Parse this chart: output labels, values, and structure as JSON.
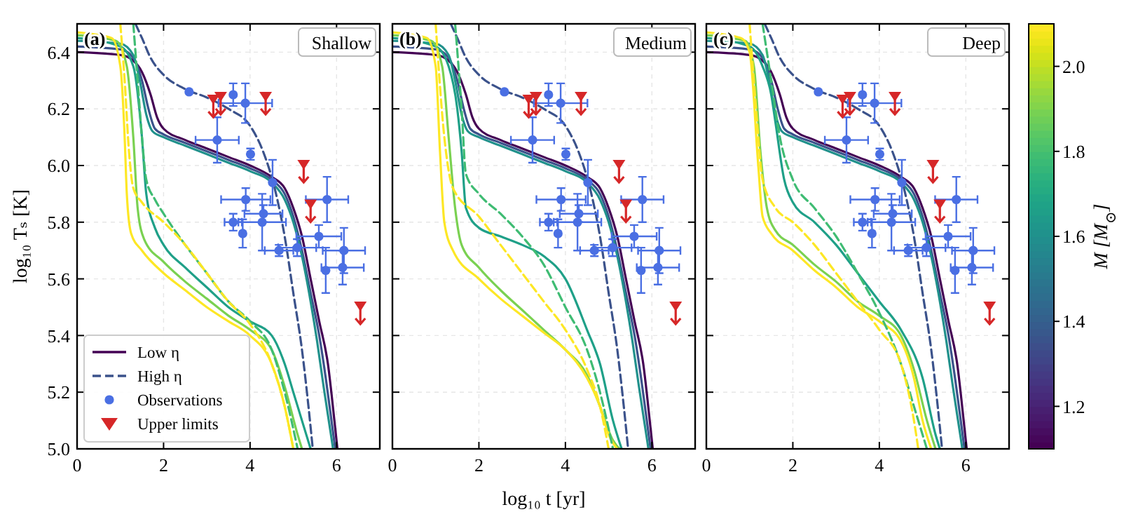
{
  "chart_data": [
    {
      "type": "line",
      "ylabel": "log₁₀ Tₛ [K]",
      "annotations": [
        "(a)",
        "Shallow"
      ],
      "xlim": [
        0,
        7
      ],
      "ylim": [
        5,
        6.5
      ],
      "xticks": [
        0,
        2,
        4,
        6
      ],
      "yticks": [
        {
          "value": 5,
          "label": "5.0"
        },
        5.2,
        5.4,
        5.6,
        5.8,
        {
          "value": 6,
          "label": "6.0"
        },
        6.2,
        6.4
      ],
      "grid": true,
      "legend": "bottom left",
      "series": [
        {
          "name": "Low η",
          "type": "line",
          "line_style": "solid",
          "color": "#440154",
          "x": [
            0,
            1,
            1.3,
            1.5,
            1.7,
            1.85,
            2,
            2.5,
            3,
            3.5,
            4,
            4.5,
            4.8,
            5,
            5.2,
            5.4,
            5.6,
            5.8,
            5.95,
            6.02
          ],
          "values": [
            6.4,
            6.39,
            6.37,
            6.33,
            6.25,
            6.17,
            6.13,
            6.09,
            6.06,
            6.03,
            6.0,
            5.96,
            5.92,
            5.85,
            5.75,
            5.6,
            5.45,
            5.3,
            5.1,
            5.0
          ]
        },
        {
          "type": "line",
          "line_style": "solid",
          "color": "#3b528b",
          "x": [
            0,
            1,
            1.3,
            1.5,
            1.65,
            1.8,
            2,
            2.5,
            3,
            3.5,
            4,
            4.5,
            4.8,
            5,
            5.2,
            5.4,
            5.6,
            5.75,
            5.9,
            5.97
          ],
          "values": [
            6.42,
            6.41,
            6.38,
            6.3,
            6.2,
            6.13,
            6.11,
            6.08,
            6.05,
            6.02,
            5.99,
            5.95,
            5.9,
            5.82,
            5.7,
            5.55,
            5.4,
            5.25,
            5.08,
            5.0
          ]
        },
        {
          "type": "line",
          "line_style": "solid",
          "color": "#21918c",
          "x": [
            0,
            1,
            1.3,
            1.45,
            1.6,
            1.75,
            2,
            2.5,
            3,
            3.5,
            4,
            4.5,
            4.8,
            5,
            5.2,
            5.4,
            5.55,
            5.7,
            5.85,
            5.92
          ],
          "values": [
            6.44,
            6.43,
            6.39,
            6.3,
            6.18,
            6.12,
            6.1,
            6.07,
            6.04,
            6.01,
            5.98,
            5.94,
            5.88,
            5.8,
            5.68,
            5.52,
            5.38,
            5.22,
            5.07,
            5.0
          ]
        },
        {
          "type": "line",
          "line_style": "solid",
          "color": "#1fa088",
          "x": [
            0,
            1,
            1.3,
            1.5,
            1.6,
            1.8,
            2,
            2.5,
            3,
            3.5,
            4,
            4.5,
            4.8,
            5,
            5.2,
            5.4
          ],
          "values": [
            6.45,
            6.42,
            6.35,
            6.1,
            5.9,
            5.78,
            5.72,
            5.64,
            5.57,
            5.5,
            5.45,
            5.4,
            5.3,
            5.2,
            5.1,
            5.0
          ]
        },
        {
          "type": "line",
          "line_style": "solid",
          "color": "#7ad151",
          "x": [
            0,
            0.9,
            1.15,
            1.3,
            1.4,
            1.55,
            2,
            2.5,
            3,
            3.5,
            4,
            4.5,
            4.8,
            5.1,
            5.2
          ],
          "values": [
            6.46,
            6.44,
            6.35,
            6.1,
            5.85,
            5.74,
            5.66,
            5.59,
            5.53,
            5.47,
            5.42,
            5.35,
            5.22,
            5.05,
            5.0
          ]
        },
        {
          "type": "line",
          "line_style": "solid",
          "color": "#fde725",
          "x": [
            0,
            0.8,
            1,
            1.1,
            1.15,
            1.25,
            1.5,
            2,
            2.5,
            3,
            3.5,
            4,
            4.5,
            4.8,
            5
          ],
          "values": [
            6.47,
            6.45,
            6.35,
            6.1,
            5.9,
            5.76,
            5.7,
            5.62,
            5.56,
            5.5,
            5.45,
            5.4,
            5.3,
            5.15,
            5.0
          ]
        },
        {
          "name": "High η",
          "type": "line",
          "line_style": "dashed",
          "color": "#3b528b",
          "x": [
            1.35,
            1.5,
            1.7,
            2,
            2.5,
            3,
            3.5,
            4,
            4.3,
            4.6,
            4.8,
            5,
            5.2,
            5.35,
            5.45
          ],
          "values": [
            6.5,
            6.45,
            6.38,
            6.32,
            6.27,
            6.24,
            6.2,
            6.14,
            6.05,
            5.9,
            5.75,
            5.55,
            5.35,
            5.15,
            5.0
          ]
        },
        {
          "type": "line",
          "line_style": "dashed",
          "color": "#3fbc73",
          "x": [
            1.3,
            1.4,
            1.5,
            1.6,
            1.8,
            2,
            2.5,
            3,
            3.5,
            4,
            4.5,
            4.8,
            5.1
          ],
          "values": [
            6.5,
            6.3,
            6.1,
            5.95,
            5.88,
            5.83,
            5.72,
            5.62,
            5.52,
            5.45,
            5.35,
            5.2,
            5.0
          ]
        },
        {
          "type": "line",
          "line_style": "dashed",
          "color": "#fde725",
          "x": [
            1,
            1.1,
            1.2,
            1.3,
            1.5,
            2,
            2.5,
            3,
            3.5,
            4,
            4.5,
            4.8,
            5
          ],
          "values": [
            6.5,
            6.3,
            6.05,
            5.92,
            5.87,
            5.8,
            5.72,
            5.62,
            5.52,
            5.44,
            5.3,
            5.15,
            5.0
          ]
        },
        {
          "name": "Observations",
          "type": "scatter",
          "marker": "circle",
          "color": "#4a6fe3",
          "x": [
            2.59,
            3.61,
            3.89,
            3.24,
            4.01,
            4.52,
            3.9,
            4.31,
            3.61,
            3.83,
            4.28,
            4.67,
            5.09,
            5.59,
            5.78,
            6.17,
            5.75,
            6.14
          ],
          "values": [
            6.26,
            6.25,
            6.22,
            6.09,
            6.04,
            5.94,
            5.88,
            5.83,
            5.8,
            5.76,
            5.8,
            5.7,
            5.71,
            5.75,
            5.88,
            5.7,
            5.63,
            5.64
          ],
          "errors": [
            null,
            0.04,
            0.07,
            0.08,
            0.02,
            0.08,
            0.04,
            0.03,
            0.03,
            0.05,
            0.1,
            0.02,
            0.03,
            0.04,
            0.08,
            0.08,
            0.08,
            0.06
          ],
          "xerrors": [
            null,
            null,
            0.62,
            0.5,
            null,
            null,
            0.57,
            0.44,
            0.2,
            null,
            0.55,
            0.33,
            0.44,
            0.52,
            0.49,
            0.49,
            null,
            0.49
          ]
        },
        {
          "name": "Upper limits",
          "type": "scatter",
          "marker": "triangle",
          "color": "#d62728",
          "x": [
            3.15,
            3.32,
            4.36,
            5.24,
            5.4,
            6.55
          ],
          "values": [
            6.23,
            6.24,
            6.24,
            6.0,
            5.86,
            5.5
          ]
        }
      ]
    },
    {
      "type": "line",
      "xlabel": "log₁₀ t [yr]",
      "annotations": [
        "(b)",
        "Medium"
      ],
      "xlim": [
        0,
        7
      ],
      "ylim": [
        5,
        6.5
      ],
      "xticks": [
        0,
        2,
        4,
        6
      ],
      "yticks": [
        5,
        5.2,
        5.4,
        5.6,
        5.8,
        6,
        6.2,
        6.4
      ],
      "tick_labels": "x",
      "grid": true,
      "series": [
        {
          "type": "line",
          "line_style": "solid",
          "color": "#440154",
          "x": [
            0,
            1,
            1.3,
            1.5,
            1.7,
            1.85,
            2,
            2.5,
            3,
            3.5,
            4,
            4.5,
            4.8,
            5,
            5.2,
            5.4,
            5.6,
            5.8,
            5.95,
            6.02
          ],
          "values": [
            6.4,
            6.39,
            6.37,
            6.33,
            6.25,
            6.17,
            6.13,
            6.09,
            6.06,
            6.03,
            6.0,
            5.96,
            5.92,
            5.85,
            5.75,
            5.6,
            5.45,
            5.3,
            5.1,
            5.0
          ]
        },
        {
          "type": "line",
          "line_style": "solid",
          "color": "#3b528b",
          "x": [
            0,
            1,
            1.3,
            1.5,
            1.65,
            1.8,
            2,
            2.5,
            3,
            3.5,
            4,
            4.5,
            4.8,
            5,
            5.2,
            5.4,
            5.6,
            5.75,
            5.9,
            5.97
          ],
          "values": [
            6.42,
            6.41,
            6.38,
            6.3,
            6.2,
            6.13,
            6.11,
            6.08,
            6.05,
            6.02,
            5.99,
            5.95,
            5.9,
            5.82,
            5.7,
            5.55,
            5.4,
            5.25,
            5.08,
            5.0
          ]
        },
        {
          "type": "line",
          "line_style": "solid",
          "color": "#21918c",
          "x": [
            0,
            1,
            1.3,
            1.45,
            1.6,
            1.75,
            2,
            2.5,
            3,
            3.5,
            4,
            4.5,
            4.8,
            5,
            5.2,
            5.4,
            5.55,
            5.7,
            5.85,
            5.92
          ],
          "values": [
            6.44,
            6.43,
            6.39,
            6.3,
            6.18,
            6.12,
            6.1,
            6.07,
            6.04,
            6.01,
            5.98,
            5.94,
            5.88,
            5.8,
            5.68,
            5.52,
            5.38,
            5.22,
            5.07,
            5.0
          ]
        },
        {
          "type": "line",
          "line_style": "solid",
          "color": "#1fa088",
          "x": [
            0,
            1,
            1.3,
            1.5,
            1.6,
            1.7,
            2,
            2.5,
            3,
            3.5,
            4,
            4.5,
            4.8,
            5.1,
            5.3
          ],
          "values": [
            6.45,
            6.42,
            6.35,
            6.2,
            6.05,
            5.85,
            5.78,
            5.75,
            5.72,
            5.68,
            5.6,
            5.42,
            5.3,
            5.1,
            5.0
          ]
        },
        {
          "type": "line",
          "line_style": "solid",
          "color": "#7ad151",
          "x": [
            0,
            0.9,
            1.15,
            1.3,
            1.45,
            1.6,
            2,
            2.5,
            3,
            3.5,
            4,
            4.5,
            4.8,
            5.1,
            5.25
          ],
          "values": [
            6.46,
            6.44,
            6.35,
            6.1,
            5.85,
            5.72,
            5.64,
            5.56,
            5.49,
            5.42,
            5.35,
            5.26,
            5.15,
            5.03,
            5.0
          ]
        },
        {
          "type": "line",
          "line_style": "solid",
          "color": "#fde725",
          "x": [
            0,
            0.8,
            1,
            1.1,
            1.2,
            1.4,
            2,
            2.5,
            3,
            3.5,
            4,
            4.5,
            4.8,
            5,
            5.2
          ],
          "values": [
            6.47,
            6.45,
            6.35,
            6.05,
            5.8,
            5.7,
            5.6,
            5.53,
            5.47,
            5.41,
            5.35,
            5.25,
            5.15,
            5.05,
            5.0
          ]
        },
        {
          "type": "line",
          "line_style": "dashed",
          "color": "#3b528b",
          "x": [
            1.35,
            1.5,
            1.7,
            2,
            2.5,
            3,
            3.5,
            4,
            4.3,
            4.6,
            4.8,
            5,
            5.2,
            5.35,
            5.45
          ],
          "values": [
            6.5,
            6.45,
            6.38,
            6.32,
            6.27,
            6.24,
            6.2,
            6.14,
            6.05,
            5.9,
            5.75,
            5.55,
            5.35,
            5.15,
            5.0
          ]
        },
        {
          "type": "line",
          "line_style": "dashed",
          "color": "#3fbc73",
          "x": [
            1.45,
            1.6,
            1.7,
            2,
            2.5,
            3,
            3.5,
            4,
            4.5,
            4.8,
            5.1
          ],
          "values": [
            6.5,
            6.2,
            5.97,
            5.9,
            5.83,
            5.75,
            5.65,
            5.5,
            5.35,
            5.2,
            5.0
          ]
        },
        {
          "type": "line",
          "line_style": "dashed",
          "color": "#fde725",
          "x": [
            1,
            1.2,
            1.4,
            2,
            2.5,
            3,
            3.5,
            4,
            4.5,
            4.8,
            5
          ],
          "values": [
            6.5,
            6.1,
            5.92,
            5.82,
            5.72,
            5.62,
            5.52,
            5.42,
            5.28,
            5.15,
            5.0
          ]
        },
        {
          "type": "scatter",
          "marker": "circle",
          "color": "#4a6fe3",
          "x": [
            2.59,
            3.61,
            3.89,
            3.24,
            4.01,
            4.52,
            3.9,
            4.31,
            3.61,
            3.83,
            4.28,
            4.67,
            5.09,
            5.59,
            5.78,
            6.17,
            5.75,
            6.14
          ],
          "values": [
            6.26,
            6.25,
            6.22,
            6.09,
            6.04,
            5.94,
            5.88,
            5.83,
            5.8,
            5.76,
            5.8,
            5.7,
            5.71,
            5.75,
            5.88,
            5.7,
            5.63,
            5.64
          ],
          "errors": [
            null,
            0.04,
            0.07,
            0.08,
            0.02,
            0.08,
            0.04,
            0.03,
            0.03,
            0.05,
            0.1,
            0.02,
            0.03,
            0.04,
            0.08,
            0.08,
            0.08,
            0.06
          ],
          "xerrors": [
            null,
            null,
            0.62,
            0.5,
            null,
            null,
            0.57,
            0.44,
            0.2,
            null,
            0.55,
            0.33,
            0.44,
            0.52,
            0.49,
            0.49,
            null,
            0.49
          ]
        },
        {
          "type": "scatter",
          "marker": "triangle",
          "color": "#d62728",
          "x": [
            3.15,
            3.32,
            4.36,
            5.24,
            5.4,
            6.55
          ],
          "values": [
            6.23,
            6.24,
            6.24,
            6.0,
            5.86,
            5.5
          ]
        }
      ]
    },
    {
      "type": "line",
      "annotations": [
        "(c)",
        "Deep"
      ],
      "clabel": "M [M$_{⊙}$]",
      "clim": [
        1.1,
        2.1
      ],
      "cticks": [
        1.2,
        1.4,
        1.6,
        1.8,
        {
          "value": 2,
          "label": "2.0"
        }
      ],
      "xlim": [
        0,
        7
      ],
      "ylim": [
        5,
        6.5
      ],
      "xticks": [
        0,
        2,
        4,
        6
      ],
      "yticks": [
        5,
        5.2,
        5.4,
        5.6,
        5.8,
        6,
        6.2,
        6.4
      ],
      "tick_labels": "x",
      "grid": true,
      "series": [
        {
          "type": "line",
          "line_style": "solid",
          "color": "#440154",
          "x": [
            0,
            1,
            1.3,
            1.5,
            1.7,
            1.85,
            2,
            2.5,
            3,
            3.5,
            4,
            4.5,
            4.8,
            5,
            5.2,
            5.4,
            5.6,
            5.8,
            5.95,
            6.02
          ],
          "values": [
            6.4,
            6.39,
            6.37,
            6.33,
            6.25,
            6.17,
            6.13,
            6.09,
            6.06,
            6.03,
            6.0,
            5.96,
            5.92,
            5.85,
            5.75,
            5.6,
            5.45,
            5.3,
            5.1,
            5.0
          ]
        },
        {
          "type": "line",
          "line_style": "solid",
          "color": "#3b528b",
          "x": [
            0,
            1,
            1.3,
            1.5,
            1.65,
            1.8,
            2,
            2.5,
            3,
            3.5,
            4,
            4.5,
            4.8,
            5,
            5.2,
            5.4,
            5.6,
            5.75,
            5.9,
            5.97
          ],
          "values": [
            6.42,
            6.41,
            6.38,
            6.3,
            6.2,
            6.13,
            6.11,
            6.08,
            6.05,
            6.02,
            5.99,
            5.95,
            5.9,
            5.82,
            5.7,
            5.55,
            5.4,
            5.25,
            5.08,
            5.0
          ]
        },
        {
          "type": "line",
          "line_style": "solid",
          "color": "#21918c",
          "x": [
            0,
            1,
            1.3,
            1.45,
            1.6,
            1.75,
            2,
            2.5,
            3,
            3.5,
            4,
            4.5,
            4.8,
            5,
            5.2,
            5.4,
            5.55,
            5.7,
            5.85,
            5.92
          ],
          "values": [
            6.44,
            6.43,
            6.39,
            6.3,
            6.18,
            6.12,
            6.1,
            6.07,
            6.04,
            6.01,
            5.98,
            5.94,
            5.88,
            5.8,
            5.68,
            5.52,
            5.38,
            5.22,
            5.07,
            5.0
          ]
        },
        {
          "type": "line",
          "line_style": "solid",
          "color": "#1fa088",
          "x": [
            0,
            1,
            1.3,
            1.5,
            1.6,
            1.8,
            2,
            2.5,
            3,
            3.5,
            4,
            4.5,
            5,
            5.3,
            5.4
          ],
          "values": [
            6.45,
            6.42,
            6.35,
            6.25,
            6.15,
            5.95,
            5.87,
            5.8,
            5.72,
            5.62,
            5.52,
            5.42,
            5.25,
            5.05,
            5.0
          ]
        },
        {
          "type": "line",
          "line_style": "solid",
          "color": "#7ad151",
          "x": [
            0,
            0.9,
            1.1,
            1.25,
            1.4,
            1.6,
            2,
            2.5,
            3,
            3.5,
            4,
            4.5,
            4.8,
            5.1,
            5.3
          ],
          "values": [
            6.46,
            6.44,
            6.35,
            6.05,
            5.85,
            5.77,
            5.72,
            5.65,
            5.59,
            5.52,
            5.47,
            5.4,
            5.28,
            5.1,
            5.0
          ]
        },
        {
          "type": "line",
          "line_style": "solid",
          "color": "#fde725",
          "x": [
            0,
            0.8,
            1,
            1.2,
            1.3,
            1.5,
            2,
            2.5,
            3,
            3.5,
            4,
            4.5,
            4.8,
            5,
            5.2
          ],
          "values": [
            6.47,
            6.45,
            6.4,
            6.0,
            5.82,
            5.76,
            5.7,
            5.63,
            5.57,
            5.5,
            5.45,
            5.38,
            5.25,
            5.1,
            5.0
          ]
        },
        {
          "type": "line",
          "line_style": "dashed",
          "color": "#3b528b",
          "x": [
            1.35,
            1.5,
            1.7,
            2,
            2.5,
            3,
            3.5,
            4,
            4.3,
            4.6,
            4.8,
            5,
            5.2,
            5.35,
            5.45
          ],
          "values": [
            6.5,
            6.45,
            6.38,
            6.32,
            6.27,
            6.24,
            6.2,
            6.14,
            6.05,
            5.9,
            5.75,
            5.55,
            5.35,
            5.15,
            5.0
          ]
        },
        {
          "type": "line",
          "line_style": "dashed",
          "color": "#3fbc73",
          "x": [
            1.3,
            1.5,
            1.7,
            2,
            2.5,
            3,
            3.5,
            4,
            4.5,
            4.8,
            5.1
          ],
          "values": [
            6.5,
            6.3,
            6.1,
            5.95,
            5.85,
            5.75,
            5.62,
            5.48,
            5.3,
            5.15,
            5.0
          ]
        },
        {
          "type": "line",
          "line_style": "dashed",
          "color": "#fde725",
          "x": [
            1,
            1.15,
            1.3,
            1.6,
            2,
            2.5,
            3,
            3.5,
            4,
            4.5,
            4.8,
            4.9
          ],
          "values": [
            6.5,
            6.2,
            5.95,
            5.85,
            5.8,
            5.72,
            5.62,
            5.52,
            5.42,
            5.3,
            5.1,
            5.0
          ]
        },
        {
          "type": "scatter",
          "marker": "circle",
          "color": "#4a6fe3",
          "x": [
            2.59,
            3.61,
            3.89,
            3.24,
            4.01,
            4.52,
            3.9,
            4.31,
            3.61,
            3.83,
            4.28,
            4.67,
            5.09,
            5.59,
            5.78,
            6.17,
            5.75,
            6.14
          ],
          "values": [
            6.26,
            6.25,
            6.22,
            6.09,
            6.04,
            5.94,
            5.88,
            5.83,
            5.8,
            5.76,
            5.8,
            5.7,
            5.71,
            5.75,
            5.88,
            5.7,
            5.63,
            5.64
          ],
          "errors": [
            null,
            0.04,
            0.07,
            0.08,
            0.02,
            0.08,
            0.04,
            0.03,
            0.03,
            0.05,
            0.1,
            0.02,
            0.03,
            0.04,
            0.08,
            0.08,
            0.08,
            0.06
          ],
          "xerrors": [
            null,
            null,
            0.62,
            0.5,
            null,
            null,
            0.57,
            0.44,
            0.2,
            null,
            0.55,
            0.33,
            0.44,
            0.52,
            0.49,
            0.49,
            null,
            0.49
          ]
        },
        {
          "type": "scatter",
          "marker": "triangle",
          "color": "#d62728",
          "x": [
            3.15,
            3.32,
            4.36,
            5.24,
            5.4,
            6.55
          ],
          "values": [
            6.23,
            6.24,
            6.24,
            6.0,
            5.86,
            5.5
          ]
        }
      ]
    }
  ]
}
